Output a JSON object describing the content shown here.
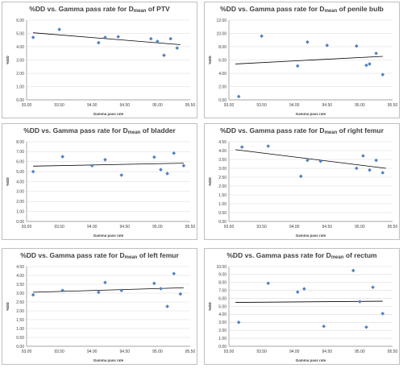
{
  "colors": {
    "point": "#4f81bd",
    "trend": "#000000",
    "grid": "#d9d9d9",
    "axis": "#8c8c8c",
    "text": "#404040"
  },
  "charts": [
    {
      "title": {
        "pre": "%DD vs. Gamma pass rate for D",
        "sub": "mean",
        "post": " of PTV"
      }
    },
    {
      "title": {
        "pre": "%DD vs. Gamma pass rate for D",
        "sub": "mean",
        "post": " of penile bulb"
      }
    },
    {
      "title": {
        "pre": "%DD vs. Gamma pass rate for D",
        "sub": "mean",
        "post": " of bladder"
      }
    },
    {
      "title": {
        "pre": "%DD vs. Gamma pass rate for D",
        "sub": "mean",
        "post": " of right femur"
      }
    },
    {
      "title": {
        "pre": "%DD vs. Gamma pass rate for D",
        "sub": "mean",
        "post": " of left femur"
      }
    },
    {
      "title": {
        "pre": "%DD vs. Gamma pass rate for D",
        "sub": "mean",
        "post": "  of  rectum"
      }
    }
  ],
  "chart_data": [
    {
      "type": "scatter",
      "title": "%DD vs. Gamma pass rate for Dmean of PTV",
      "xlabel": "Gamma pass rate",
      "ylabel": "%DD",
      "xlim": [
        93.0,
        95.5
      ],
      "ylim": [
        0.0,
        6.0
      ],
      "xticks": [
        "93.00",
        "93.50",
        "94.00",
        "94.50",
        "95.00",
        "95.50"
      ],
      "yticks": [
        "0.00",
        "1.00",
        "2.00",
        "3.00",
        "4.00",
        "5.00",
        "6.00"
      ],
      "grid": true,
      "trendline": true,
      "points": [
        [
          93.1,
          4.7
        ],
        [
          93.5,
          5.3
        ],
        [
          94.1,
          4.3
        ],
        [
          94.2,
          4.7
        ],
        [
          94.4,
          4.75
        ],
        [
          94.9,
          4.6
        ],
        [
          95.0,
          4.4
        ],
        [
          95.1,
          3.35
        ],
        [
          95.2,
          4.6
        ],
        [
          95.3,
          3.9
        ]
      ],
      "trend": [
        [
          93.1,
          5.05
        ],
        [
          95.35,
          4.15
        ]
      ]
    },
    {
      "type": "scatter",
      "title": "%DD vs. Gamma pass rate for Dmean of penile bulb",
      "xlabel": "Gamma pass rate",
      "ylabel": "%DD",
      "xlim": [
        93.0,
        95.5
      ],
      "ylim": [
        0.0,
        12.0
      ],
      "xticks": [
        "93.00",
        "93.50",
        "94.00",
        "94.50",
        "95.00",
        "95.50"
      ],
      "yticks": [
        "0.00",
        "2.00",
        "4.00",
        "6.00",
        "8.00",
        "10.00",
        "12.00"
      ],
      "grid": true,
      "trendline": true,
      "points": [
        [
          93.15,
          0.5
        ],
        [
          93.5,
          9.6
        ],
        [
          94.05,
          5.1
        ],
        [
          94.2,
          8.7
        ],
        [
          94.5,
          8.2
        ],
        [
          94.95,
          8.1
        ],
        [
          95.1,
          5.2
        ],
        [
          95.15,
          5.4
        ],
        [
          95.25,
          7.0
        ],
        [
          95.35,
          3.8
        ]
      ],
      "trend": [
        [
          93.1,
          5.4
        ],
        [
          95.35,
          6.55
        ]
      ]
    },
    {
      "type": "scatter",
      "title": "%DD vs. Gamma pass rate for Dmean of bladder",
      "xlabel": "Gamma pass rate",
      "ylabel": "%DD",
      "xlim": [
        93.0,
        95.5
      ],
      "ylim": [
        0.0,
        8.0
      ],
      "xticks": [
        "93.00",
        "93.50",
        "94.00",
        "94.50",
        "95.00",
        "95.50"
      ],
      "yticks": [
        "0.00",
        "1.00",
        "2.00",
        "3.00",
        "4.00",
        "5.00",
        "6.00",
        "7.00",
        "8.00"
      ],
      "grid": true,
      "trendline": true,
      "points": [
        [
          93.1,
          5.0
        ],
        [
          93.55,
          6.5
        ],
        [
          94.0,
          5.6
        ],
        [
          94.2,
          6.2
        ],
        [
          94.45,
          4.65
        ],
        [
          94.95,
          6.45
        ],
        [
          95.05,
          5.2
        ],
        [
          95.15,
          4.8
        ],
        [
          95.25,
          6.85
        ],
        [
          95.4,
          5.6
        ]
      ],
      "trend": [
        [
          93.1,
          5.55
        ],
        [
          95.4,
          5.85
        ]
      ]
    },
    {
      "type": "scatter",
      "title": "%DD vs. Gamma pass rate for Dmean of right femur",
      "xlabel": "Gamma pass rate",
      "ylabel": "%DD",
      "xlim": [
        93.0,
        95.5
      ],
      "ylim": [
        0.0,
        4.5
      ],
      "xticks": [
        "93.00",
        "93.50",
        "94.00",
        "94.50",
        "95.00",
        "95.50"
      ],
      "yticks": [
        "0.00",
        "0.50",
        "1.00",
        "1.50",
        "2.00",
        "2.50",
        "3.00",
        "3.50",
        "4.00",
        "4.50"
      ],
      "grid": true,
      "trendline": true,
      "points": [
        [
          93.2,
          4.2
        ],
        [
          93.6,
          4.25
        ],
        [
          94.1,
          2.55
        ],
        [
          94.2,
          3.45
        ],
        [
          94.4,
          3.4
        ],
        [
          94.95,
          3.0
        ],
        [
          95.05,
          3.7
        ],
        [
          95.15,
          2.9
        ],
        [
          95.25,
          3.45
        ],
        [
          95.35,
          2.75
        ]
      ],
      "trend": [
        [
          93.1,
          4.05
        ],
        [
          95.4,
          3.0
        ]
      ]
    },
    {
      "type": "scatter",
      "title": "%DD vs. Gamma pass rate for Dmean of left femur",
      "xlabel": "Gamma pass rate",
      "ylabel": "%DD",
      "xlim": [
        93.0,
        95.5
      ],
      "ylim": [
        0.0,
        4.5
      ],
      "xticks": [
        "93.00",
        "93.50",
        "94.00",
        "94.50",
        "95.00",
        "95.50"
      ],
      "yticks": [
        "0.00",
        "0.50",
        "1.00",
        "1.50",
        "2.00",
        "2.50",
        "3.00",
        "3.50",
        "4.00",
        "4.50"
      ],
      "grid": true,
      "trendline": true,
      "points": [
        [
          93.1,
          2.9
        ],
        [
          93.55,
          3.15
        ],
        [
          94.1,
          3.05
        ],
        [
          94.2,
          3.6
        ],
        [
          94.45,
          3.15
        ],
        [
          94.95,
          3.55
        ],
        [
          95.05,
          3.25
        ],
        [
          95.15,
          2.25
        ],
        [
          95.25,
          4.1
        ],
        [
          95.35,
          2.95
        ]
      ],
      "trend": [
        [
          93.1,
          3.05
        ],
        [
          95.4,
          3.3
        ]
      ]
    },
    {
      "type": "scatter",
      "title": "%DD vs. Gamma pass rate for Dmean of rectum",
      "xlabel": "Gamma pass rate",
      "ylabel": "%DD",
      "xlim": [
        93.0,
        95.5
      ],
      "ylim": [
        0.0,
        10.0
      ],
      "xticks": [
        "93.00",
        "93.50",
        "94.00",
        "94.50",
        "95.00",
        "95.50"
      ],
      "yticks": [
        "0.00",
        "1.00",
        "2.00",
        "3.00",
        "4.00",
        "5.00",
        "6.00",
        "7.00",
        "8.00",
        "9.00",
        "10.00"
      ],
      "grid": true,
      "trendline": true,
      "points": [
        [
          93.15,
          3.0
        ],
        [
          93.6,
          7.9
        ],
        [
          94.05,
          6.8
        ],
        [
          94.15,
          7.2
        ],
        [
          94.45,
          2.5
        ],
        [
          94.9,
          9.5
        ],
        [
          95.0,
          5.6
        ],
        [
          95.1,
          2.4
        ],
        [
          95.2,
          7.4
        ],
        [
          95.35,
          4.1
        ]
      ],
      "trend": [
        [
          93.1,
          5.5
        ],
        [
          95.35,
          5.65
        ]
      ]
    }
  ]
}
